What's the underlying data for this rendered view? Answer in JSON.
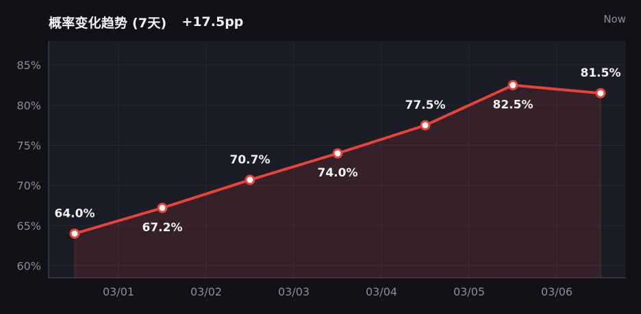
{
  "header": {
    "title": "概率变化趋势 (7天)",
    "delta": "+17.5pp",
    "status": "Now"
  },
  "colors": {
    "background": "#111217",
    "plot_background": "#1a1c26",
    "line": "#e8423a",
    "marker_fill": "#ffffff",
    "area_fill": "#e8423a",
    "grid": "#262936",
    "axis": "#3a3d4a",
    "tick_text": "#8a8d99",
    "label_text": "#f2f2f4"
  },
  "chart_data": {
    "type": "line",
    "title": "概率变化趋势 (7天)",
    "x": [
      "02/28 12:00",
      "03/01 12:00",
      "03/02 12:00",
      "03/03 12:00",
      "03/04 12:00",
      "03/05 12:00",
      "03/06 12:00"
    ],
    "x_tick_labels": [
      "03/01",
      "03/02",
      "03/03",
      "03/04",
      "03/05",
      "03/06"
    ],
    "series": [
      {
        "values": [
          64.0,
          67.2,
          70.7,
          74.0,
          77.5,
          82.5,
          81.5
        ]
      }
    ],
    "data_labels": [
      "64.0%",
      "67.2%",
      "70.7%",
      "74.0%",
      "77.5%",
      "82.5%",
      "81.5%"
    ],
    "ylim": [
      58.5,
      88
    ],
    "y_ticks": [
      60,
      65,
      70,
      75,
      80,
      85
    ],
    "y_tick_labels": [
      "60%",
      "65%",
      "70%",
      "75%",
      "80%",
      "85%"
    ],
    "area_fill": true,
    "grid": true,
    "legend": "none"
  }
}
